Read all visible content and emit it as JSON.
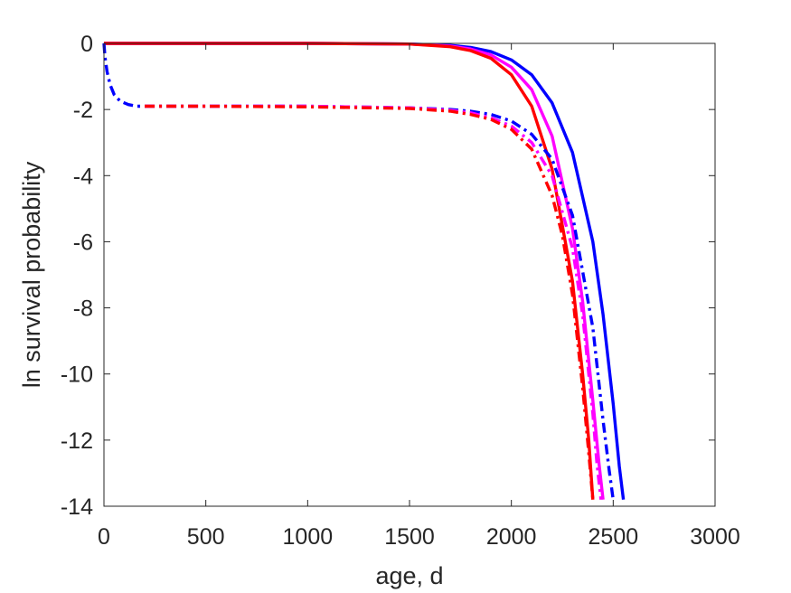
{
  "chart_data": {
    "type": "line",
    "title": "",
    "xlabel": "age, d",
    "ylabel": "ln survival probability",
    "xlim": [
      0,
      3000
    ],
    "ylim": [
      -14,
      0
    ],
    "xticks": [
      0,
      500,
      1000,
      1500,
      2000,
      2500,
      3000
    ],
    "yticks": [
      0,
      -2,
      -4,
      -6,
      -8,
      -10,
      -12,
      -14
    ],
    "grid": false,
    "legend": "none",
    "series": [
      {
        "color": "#0000ff",
        "style": "solid",
        "x": [
          0,
          500,
          1000,
          1500,
          1700,
          1800,
          1900,
          2000,
          2100,
          2200,
          2300,
          2400,
          2450,
          2500,
          2530,
          2550
        ],
        "y": [
          0,
          0,
          0,
          -0.02,
          -0.06,
          -0.12,
          -0.25,
          -0.5,
          -0.95,
          -1.8,
          -3.3,
          -6.0,
          -8.2,
          -10.9,
          -12.8,
          -13.8
        ]
      },
      {
        "color": "#ff00ff",
        "style": "solid",
        "x": [
          0,
          500,
          1000,
          1500,
          1700,
          1800,
          1900,
          2000,
          2100,
          2200,
          2300,
          2350,
          2400,
          2430,
          2450
        ],
        "y": [
          0,
          0,
          0,
          -0.02,
          -0.08,
          -0.17,
          -0.35,
          -0.72,
          -1.4,
          -2.8,
          -5.6,
          -7.8,
          -10.8,
          -12.7,
          -13.8
        ]
      },
      {
        "color": "#ff0000",
        "style": "solid",
        "x": [
          0,
          500,
          1000,
          1500,
          1700,
          1800,
          1900,
          2000,
          2100,
          2200,
          2300,
          2350,
          2380,
          2400
        ],
        "y": [
          0,
          0,
          0,
          -0.02,
          -0.1,
          -0.22,
          -0.45,
          -0.95,
          -1.9,
          -3.8,
          -7.2,
          -10.0,
          -12.0,
          -13.8
        ]
      },
      {
        "color": "#0000ff",
        "style": "dashdot",
        "x": [
          0,
          5,
          15,
          30,
          50,
          80,
          120,
          160,
          200,
          300,
          500,
          1000,
          1500,
          1700,
          1800,
          1900,
          2000,
          2100,
          2200,
          2300,
          2400,
          2450,
          2480,
          2500
        ],
        "y": [
          0,
          -0.4,
          -0.85,
          -1.25,
          -1.55,
          -1.75,
          -1.85,
          -1.9,
          -1.9,
          -1.9,
          -1.9,
          -1.9,
          -1.95,
          -2.0,
          -2.05,
          -2.15,
          -2.35,
          -2.75,
          -3.5,
          -5.2,
          -8.6,
          -11.4,
          -12.9,
          -13.8
        ]
      },
      {
        "color": "#ff00ff",
        "style": "dashdot",
        "x": [
          200,
          500,
          1000,
          1500,
          1700,
          1800,
          1900,
          2000,
          2100,
          2200,
          2300,
          2350,
          2400,
          2420,
          2440
        ],
        "y": [
          -1.9,
          -1.9,
          -1.9,
          -1.95,
          -2.02,
          -2.1,
          -2.25,
          -2.5,
          -3.0,
          -4.0,
          -6.2,
          -8.2,
          -11.2,
          -12.7,
          -13.8
        ]
      },
      {
        "color": "#ff0000",
        "style": "dashdot",
        "x": [
          200,
          500,
          1000,
          1500,
          1700,
          1800,
          1900,
          2000,
          2100,
          2200,
          2250,
          2300,
          2350,
          2380,
          2400
        ],
        "y": [
          -1.9,
          -1.9,
          -1.92,
          -1.97,
          -2.05,
          -2.15,
          -2.3,
          -2.6,
          -3.2,
          -4.6,
          -5.8,
          -7.6,
          -10.4,
          -12.4,
          -13.8
        ]
      }
    ]
  }
}
